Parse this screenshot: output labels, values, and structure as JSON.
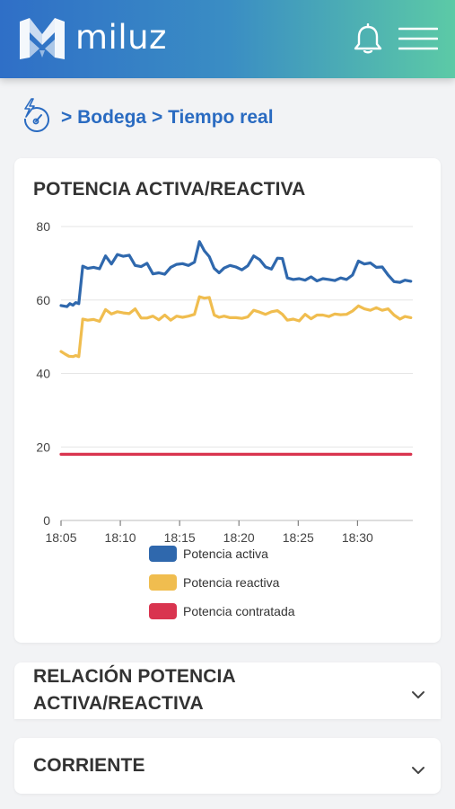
{
  "header": {
    "brand": "miluz",
    "icons": {
      "logo": "miluz-logo-icon",
      "notifications": "bell-icon",
      "menu": "hamburger-menu-icon"
    }
  },
  "breadcrumb": {
    "icon": "gauge-bolt-icon",
    "items": [
      "Bodega",
      "Tiempo real"
    ]
  },
  "cards": [
    {
      "title": "POTENCIA ACTIVA/REACTIVA",
      "expanded": true
    },
    {
      "title_lines": [
        "RELACIÓN POTENCIA",
        "ACTIVA/REACTIVA"
      ],
      "expanded": false
    },
    {
      "title": "CORRIENTE",
      "expanded": false
    }
  ],
  "chart_data": {
    "type": "line",
    "title": "",
    "ylim": [
      0,
      80
    ],
    "yticks": [
      "0",
      "20",
      "40",
      "60",
      "80"
    ],
    "xticks": [
      "18:05",
      "18:10",
      "18:15",
      "18:20",
      "18:25",
      "18:30"
    ],
    "grid": true,
    "legend_position": "bottom",
    "series": [
      {
        "name": "Potencia activa",
        "color": "#2f68ad",
        "values": [
          {
            "x": "18:05:00",
            "y": 58.5
          },
          {
            "x": "18:05:30",
            "y": 58.2
          },
          {
            "x": "18:05:45",
            "y": 59.0
          },
          {
            "x": "18:06:00",
            "y": 58.6
          },
          {
            "x": "18:06:15",
            "y": 59.3
          },
          {
            "x": "18:06:30",
            "y": 59.0
          },
          {
            "x": "18:06:50",
            "y": 69.2
          },
          {
            "x": "18:07:15",
            "y": 68.6
          },
          {
            "x": "18:07:45",
            "y": 68.9
          },
          {
            "x": "18:08:15",
            "y": 68.5
          },
          {
            "x": "18:08:45",
            "y": 72.0
          },
          {
            "x": "18:09:15",
            "y": 69.8
          },
          {
            "x": "18:09:45",
            "y": 72.4
          },
          {
            "x": "18:10:15",
            "y": 71.9
          },
          {
            "x": "18:10:45",
            "y": 72.2
          },
          {
            "x": "18:11:15",
            "y": 69.4
          },
          {
            "x": "18:11:45",
            "y": 69.1
          },
          {
            "x": "18:12:15",
            "y": 70.0
          },
          {
            "x": "18:12:45",
            "y": 67.1
          },
          {
            "x": "18:13:15",
            "y": 67.4
          },
          {
            "x": "18:13:45",
            "y": 67.0
          },
          {
            "x": "18:14:15",
            "y": 68.9
          },
          {
            "x": "18:14:45",
            "y": 69.7
          },
          {
            "x": "18:15:15",
            "y": 69.9
          },
          {
            "x": "18:15:45",
            "y": 69.4
          },
          {
            "x": "18:16:15",
            "y": 70.3
          },
          {
            "x": "18:16:40",
            "y": 75.9
          },
          {
            "x": "18:17:05",
            "y": 73.4
          },
          {
            "x": "18:17:30",
            "y": 71.8
          },
          {
            "x": "18:17:55",
            "y": 68.6
          },
          {
            "x": "18:18:20",
            "y": 67.4
          },
          {
            "x": "18:18:45",
            "y": 68.7
          },
          {
            "x": "18:19:15",
            "y": 69.4
          },
          {
            "x": "18:19:45",
            "y": 69.0
          },
          {
            "x": "18:20:15",
            "y": 68.2
          },
          {
            "x": "18:20:45",
            "y": 69.3
          },
          {
            "x": "18:21:15",
            "y": 72.0
          },
          {
            "x": "18:21:45",
            "y": 71.0
          },
          {
            "x": "18:22:15",
            "y": 69.0
          },
          {
            "x": "18:22:45",
            "y": 68.4
          },
          {
            "x": "18:23:15",
            "y": 71.4
          },
          {
            "x": "18:23:40",
            "y": 71.3
          },
          {
            "x": "18:24:05",
            "y": 66.0
          },
          {
            "x": "18:24:35",
            "y": 65.6
          },
          {
            "x": "18:25:05",
            "y": 65.8
          },
          {
            "x": "18:25:35",
            "y": 65.4
          },
          {
            "x": "18:26:05",
            "y": 66.3
          },
          {
            "x": "18:26:35",
            "y": 65.2
          },
          {
            "x": "18:27:05",
            "y": 65.8
          },
          {
            "x": "18:27:35",
            "y": 65.6
          },
          {
            "x": "18:28:05",
            "y": 65.3
          },
          {
            "x": "18:28:35",
            "y": 66.0
          },
          {
            "x": "18:29:05",
            "y": 65.6
          },
          {
            "x": "18:29:35",
            "y": 66.8
          },
          {
            "x": "18:30:05",
            "y": 70.6
          },
          {
            "x": "18:30:35",
            "y": 69.8
          },
          {
            "x": "18:31:05",
            "y": 70.1
          },
          {
            "x": "18:31:35",
            "y": 68.9
          },
          {
            "x": "18:32:05",
            "y": 69.0
          },
          {
            "x": "18:32:35",
            "y": 66.8
          },
          {
            "x": "18:33:05",
            "y": 65.0
          },
          {
            "x": "18:33:35",
            "y": 64.8
          },
          {
            "x": "18:34:00",
            "y": 65.4
          },
          {
            "x": "18:34:30",
            "y": 65.1
          }
        ]
      },
      {
        "name": "Potencia reactiva",
        "color": "#f0bd4f",
        "values": [
          {
            "x": "18:05:00",
            "y": 46.0
          },
          {
            "x": "18:05:20",
            "y": 45.3
          },
          {
            "x": "18:05:40",
            "y": 44.7
          },
          {
            "x": "18:06:00",
            "y": 44.6
          },
          {
            "x": "18:06:15",
            "y": 44.9
          },
          {
            "x": "18:06:30",
            "y": 44.6
          },
          {
            "x": "18:06:50",
            "y": 54.8
          },
          {
            "x": "18:07:15",
            "y": 54.5
          },
          {
            "x": "18:07:45",
            "y": 54.7
          },
          {
            "x": "18:08:15",
            "y": 54.2
          },
          {
            "x": "18:08:45",
            "y": 57.4
          },
          {
            "x": "18:09:15",
            "y": 56.2
          },
          {
            "x": "18:09:45",
            "y": 56.8
          },
          {
            "x": "18:10:15",
            "y": 56.5
          },
          {
            "x": "18:10:45",
            "y": 56.3
          },
          {
            "x": "18:11:15",
            "y": 57.6
          },
          {
            "x": "18:11:45",
            "y": 55.1
          },
          {
            "x": "18:12:15",
            "y": 55.1
          },
          {
            "x": "18:12:45",
            "y": 55.6
          },
          {
            "x": "18:13:15",
            "y": 54.6
          },
          {
            "x": "18:13:45",
            "y": 55.9
          },
          {
            "x": "18:14:15",
            "y": 54.5
          },
          {
            "x": "18:14:45",
            "y": 55.6
          },
          {
            "x": "18:15:15",
            "y": 55.3
          },
          {
            "x": "18:15:45",
            "y": 55.6
          },
          {
            "x": "18:16:15",
            "y": 56.1
          },
          {
            "x": "18:16:40",
            "y": 60.9
          },
          {
            "x": "18:17:05",
            "y": 60.5
          },
          {
            "x": "18:17:30",
            "y": 60.7
          },
          {
            "x": "18:17:55",
            "y": 55.9
          },
          {
            "x": "18:18:20",
            "y": 55.3
          },
          {
            "x": "18:18:45",
            "y": 55.6
          },
          {
            "x": "18:19:15",
            "y": 55.2
          },
          {
            "x": "18:19:45",
            "y": 55.2
          },
          {
            "x": "18:20:15",
            "y": 55.0
          },
          {
            "x": "18:20:45",
            "y": 55.4
          },
          {
            "x": "18:21:15",
            "y": 57.2
          },
          {
            "x": "18:21:45",
            "y": 56.7
          },
          {
            "x": "18:22:15",
            "y": 56.1
          },
          {
            "x": "18:22:45",
            "y": 56.8
          },
          {
            "x": "18:23:15",
            "y": 57.1
          },
          {
            "x": "18:23:40",
            "y": 56.1
          },
          {
            "x": "18:24:05",
            "y": 54.5
          },
          {
            "x": "18:24:35",
            "y": 54.8
          },
          {
            "x": "18:25:05",
            "y": 54.3
          },
          {
            "x": "18:25:35",
            "y": 56.1
          },
          {
            "x": "18:26:05",
            "y": 54.9
          },
          {
            "x": "18:26:35",
            "y": 55.9
          },
          {
            "x": "18:27:05",
            "y": 55.9
          },
          {
            "x": "18:27:35",
            "y": 55.5
          },
          {
            "x": "18:28:05",
            "y": 56.2
          },
          {
            "x": "18:28:35",
            "y": 56.0
          },
          {
            "x": "18:29:05",
            "y": 56.1
          },
          {
            "x": "18:29:35",
            "y": 57.0
          },
          {
            "x": "18:30:05",
            "y": 58.4
          },
          {
            "x": "18:30:35",
            "y": 57.6
          },
          {
            "x": "18:31:05",
            "y": 57.2
          },
          {
            "x": "18:31:35",
            "y": 57.9
          },
          {
            "x": "18:32:05",
            "y": 57.2
          },
          {
            "x": "18:32:35",
            "y": 57.6
          },
          {
            "x": "18:33:05",
            "y": 55.9
          },
          {
            "x": "18:33:35",
            "y": 54.8
          },
          {
            "x": "18:34:00",
            "y": 55.5
          },
          {
            "x": "18:34:30",
            "y": 55.2
          }
        ]
      },
      {
        "name": "Potencia contratada",
        "color": "#d9344f",
        "values": [
          {
            "x": "18:05:00",
            "y": 18.0
          },
          {
            "x": "18:34:30",
            "y": 18.0
          }
        ]
      }
    ]
  }
}
